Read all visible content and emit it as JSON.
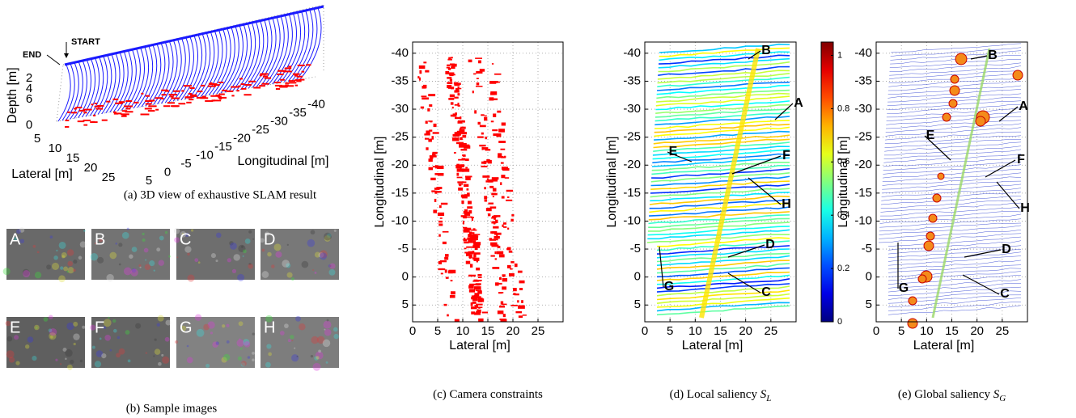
{
  "panel_a": {
    "caption": "(a) 3D view of exhaustive SLAM result",
    "start_label": "START",
    "end_label": "END",
    "zlabel": "Depth [m]",
    "xlabel": "Lateral [m]",
    "ylabel": "Longitudinal [m]",
    "zticks": [
      2,
      4,
      6,
      0
    ],
    "xticks": [
      5,
      10,
      15,
      20,
      25
    ],
    "yticks": [
      5,
      0,
      -5,
      -10,
      -15,
      -20,
      -25,
      -30,
      -35,
      -40
    ]
  },
  "panel_b": {
    "caption": "(b) Sample images",
    "images": [
      "A",
      "B",
      "C",
      "D",
      "E",
      "F",
      "G",
      "H"
    ]
  },
  "panels": [
    {
      "caption": "(c) Camera constraints",
      "xlabel": "Lateral [m]",
      "ylabel": "Longitudinal [m]",
      "xlim": [
        0,
        30
      ],
      "ylim": [
        -42,
        8
      ],
      "xticks": [
        0,
        5,
        10,
        15,
        20,
        25
      ],
      "yticks": [
        -40,
        -35,
        -30,
        -25,
        -20,
        -15,
        -10,
        -5,
        0,
        5
      ],
      "annotations": []
    },
    {
      "caption": "(d) Local saliency",
      "symbol": {
        "base": "S",
        "sub": "L"
      },
      "xlabel": "Lateral [m]",
      "ylabel": "Longitudinal [m]",
      "xlim": [
        0,
        30
      ],
      "ylim": [
        -42,
        8
      ],
      "xticks": [
        0,
        5,
        10,
        15,
        20,
        25
      ],
      "yticks": [
        -40,
        -35,
        -30,
        -25,
        -20,
        -15,
        -10,
        -5,
        0,
        5
      ],
      "annotations": [
        "B",
        "A",
        "E",
        "F",
        "H",
        "D",
        "G",
        "C"
      ],
      "colorbar": {
        "lim": [
          0,
          1.05
        ],
        "ticks": [
          0,
          0.2,
          0.4,
          0.6,
          0.8,
          1
        ]
      }
    },
    {
      "caption": "(e) Global saliency",
      "symbol": {
        "base": "S",
        "sub": "G"
      },
      "xlabel": "Lateral [m]",
      "ylabel": "Longitudinal [m]",
      "xlim": [
        0,
        30
      ],
      "ylim": [
        -42,
        8
      ],
      "xticks": [
        0,
        5,
        10,
        15,
        20,
        25
      ],
      "yticks": [
        -40,
        -35,
        -30,
        -25,
        -20,
        -15,
        -10,
        -5,
        0,
        5
      ],
      "annotations": [
        "B",
        "A",
        "E",
        "F",
        "H",
        "D",
        "G",
        "C"
      ]
    }
  ]
}
